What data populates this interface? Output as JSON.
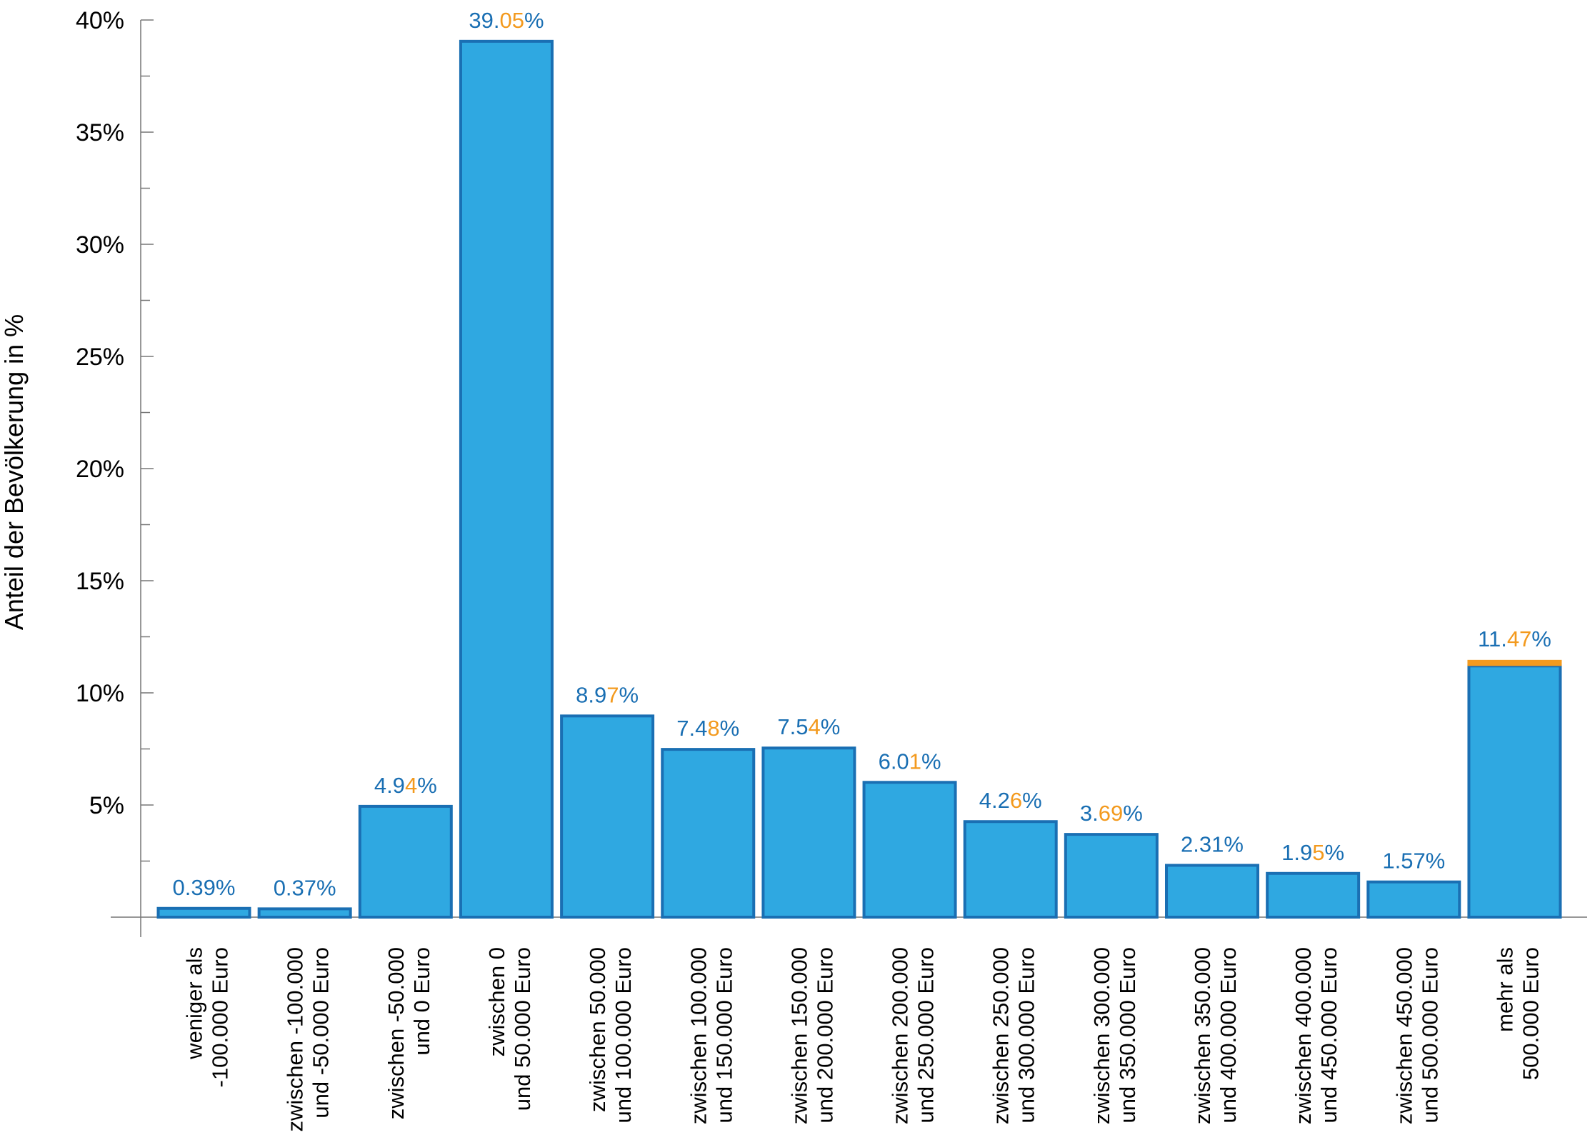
{
  "chart_data": {
    "type": "bar",
    "title": "",
    "xlabel": "",
    "ylabel": "Anteil der Bevölkerung in %",
    "ylim": [
      0,
      40
    ],
    "yticks": [
      {
        "value": 5,
        "label": "5%"
      },
      {
        "value": 10,
        "label": "10%"
      },
      {
        "value": 15,
        "label": "15%"
      },
      {
        "value": 20,
        "label": "20%"
      },
      {
        "value": 25,
        "label": "25%"
      },
      {
        "value": 30,
        "label": "30%"
      },
      {
        "value": 35,
        "label": "35%"
      },
      {
        "value": 40,
        "label": "40%"
      }
    ],
    "grid": false,
    "legend": "none",
    "colors": {
      "bar_fill": "#2fa8e1",
      "bar_edge": "#1a6fb3",
      "label_blue": "#1a6fb3",
      "label_orange": "#f39a1e",
      "highlight_cap": "#f39a1e"
    },
    "categories": [
      [
        "weniger als",
        "-100.000 Euro"
      ],
      [
        "zwischen -100.000",
        "und -50.000 Euro"
      ],
      [
        "zwischen -50.000",
        "und 0 Euro"
      ],
      [
        "zwischen 0",
        "und 50.000 Euro"
      ],
      [
        "zwischen 50.000",
        "und 100.000 Euro"
      ],
      [
        "zwischen 100.000",
        "und 150.000 Euro"
      ],
      [
        "zwischen 150.000",
        "und 200.000 Euro"
      ],
      [
        "zwischen 200.000",
        "und 250.000 Euro"
      ],
      [
        "zwischen 250.000",
        "und 300.000 Euro"
      ],
      [
        "zwischen 300.000",
        "und 350.000 Euro"
      ],
      [
        "zwischen 350.000",
        "und 400.000 Euro"
      ],
      [
        "zwischen 400.000",
        "und 450.000 Euro"
      ],
      [
        "zwischen 450.000",
        "und 500.000 Euro"
      ],
      [
        "mehr als",
        "500.000 Euro"
      ]
    ],
    "values": [
      0.39,
      0.37,
      4.94,
      39.05,
      8.97,
      7.48,
      7.54,
      6.01,
      4.26,
      3.69,
      2.31,
      1.95,
      1.57,
      11.47
    ],
    "value_labels": [
      [
        {
          "t": "0.39%",
          "c": "blue"
        }
      ],
      [
        {
          "t": "0.37%",
          "c": "blue"
        }
      ],
      [
        {
          "t": "4.9",
          "c": "blue"
        },
        {
          "t": "4",
          "c": "orange"
        },
        {
          "t": "%",
          "c": "blue"
        }
      ],
      [
        {
          "t": "39.",
          "c": "blue"
        },
        {
          "t": "05",
          "c": "orange"
        },
        {
          "t": "%",
          "c": "blue"
        }
      ],
      [
        {
          "t": "8.9",
          "c": "blue"
        },
        {
          "t": "7",
          "c": "orange"
        },
        {
          "t": "%",
          "c": "blue"
        }
      ],
      [
        {
          "t": "7.4",
          "c": "blue"
        },
        {
          "t": "8",
          "c": "orange"
        },
        {
          "t": "%",
          "c": "blue"
        }
      ],
      [
        {
          "t": "7.5",
          "c": "blue"
        },
        {
          "t": "4",
          "c": "orange"
        },
        {
          "t": "%",
          "c": "blue"
        }
      ],
      [
        {
          "t": "6.0",
          "c": "blue"
        },
        {
          "t": "1",
          "c": "orange"
        },
        {
          "t": "%",
          "c": "blue"
        }
      ],
      [
        {
          "t": "4.2",
          "c": "blue"
        },
        {
          "t": "6",
          "c": "orange"
        },
        {
          "t": "%",
          "c": "blue"
        }
      ],
      [
        {
          "t": "3.",
          "c": "blue"
        },
        {
          "t": "69",
          "c": "orange"
        },
        {
          "t": "%",
          "c": "blue"
        }
      ],
      [
        {
          "t": "2.31%",
          "c": "blue"
        }
      ],
      [
        {
          "t": "1.9",
          "c": "blue"
        },
        {
          "t": "5",
          "c": "orange"
        },
        {
          "t": "%",
          "c": "blue"
        }
      ],
      [
        {
          "t": "1.57%",
          "c": "blue"
        }
      ],
      [
        {
          "t": "11.",
          "c": "blue"
        },
        {
          "t": "47",
          "c": "orange"
        },
        {
          "t": "%",
          "c": "blue"
        }
      ]
    ],
    "highlight_cap": {
      "index": 13,
      "value": 0.27
    }
  }
}
